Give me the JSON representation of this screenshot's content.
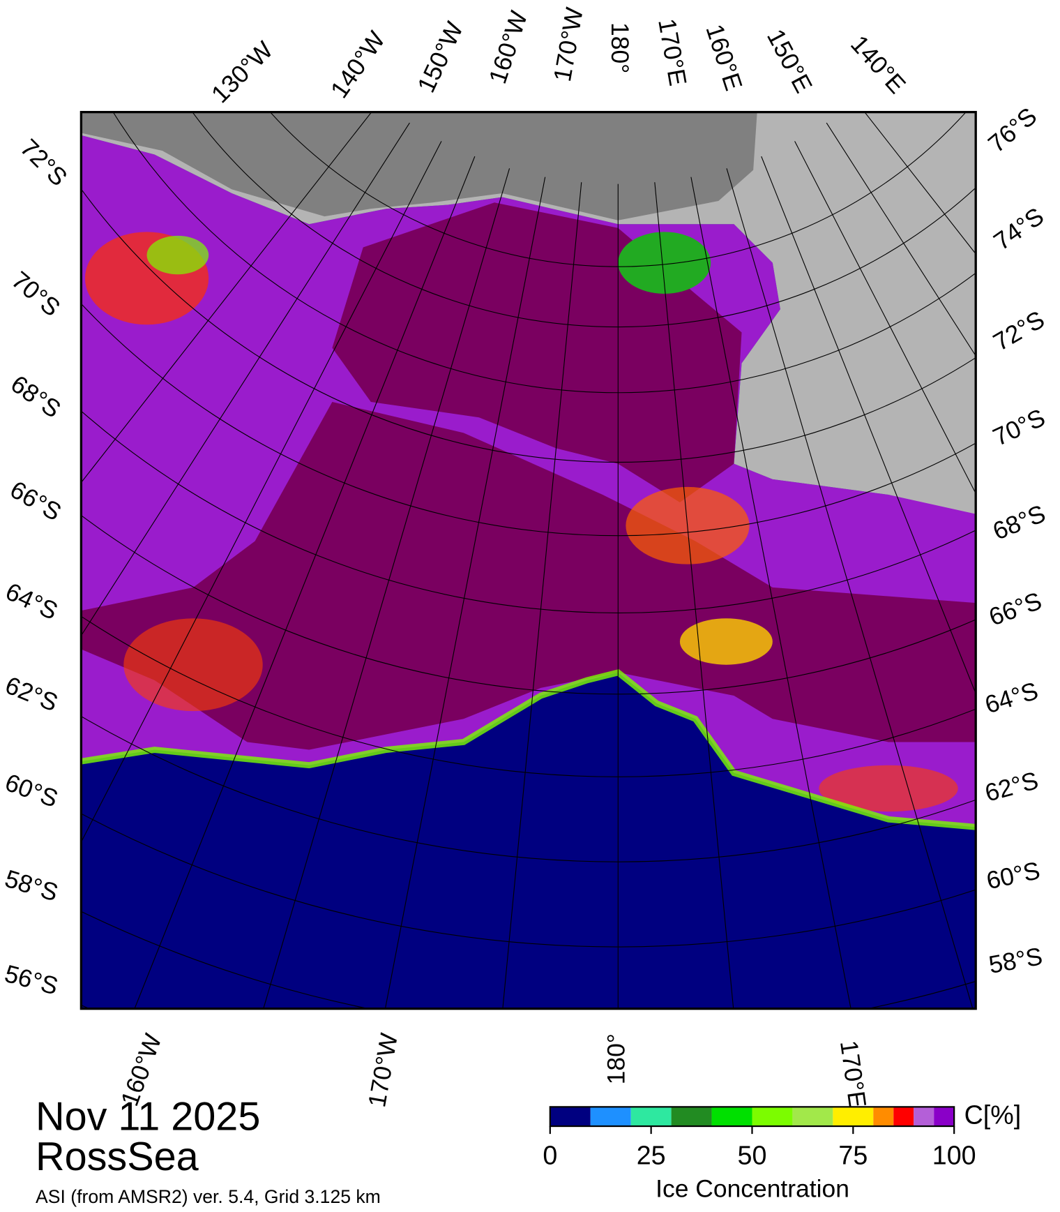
{
  "map": {
    "date": "Nov 11 2025",
    "region": "RossSea",
    "source": "ASI (from AMSR2) ver. 5.4,  Grid 3.125 km",
    "top_lon_labels": [
      "130°W",
      "140°W",
      "150°W",
      "160°W",
      "170°W",
      "180°",
      "170°E",
      "160°E",
      "150°E",
      "140°E"
    ],
    "bottom_lon_labels": [
      "160°W",
      "170°W",
      "180°",
      "170°E"
    ],
    "left_lat_labels": [
      "72°S",
      "70°S",
      "68°S",
      "66°S",
      "64°S",
      "62°S",
      "60°S",
      "58°S",
      "56°S"
    ],
    "right_lat_labels": [
      "76°S",
      "74°S",
      "72°S",
      "70°S",
      "68°S",
      "66°S",
      "64°S",
      "62°S",
      "60°S",
      "58°S"
    ]
  },
  "colorbar": {
    "bounds": [
      0,
      10,
      20,
      30,
      40,
      50,
      60,
      70,
      80,
      85,
      90,
      95,
      100
    ],
    "colors": [
      "#000080",
      "#1e90ff",
      "#2ee8a0",
      "#228b22",
      "#00e000",
      "#7cfc00",
      "#a2e84a",
      "#ffee00",
      "#ff8c00",
      "#ff0000",
      "#b45fd8",
      "#8a00c8"
    ],
    "ticks": [
      0,
      25,
      50,
      75,
      100
    ],
    "label": "Ice Concentration",
    "unit": "C[%]"
  }
}
